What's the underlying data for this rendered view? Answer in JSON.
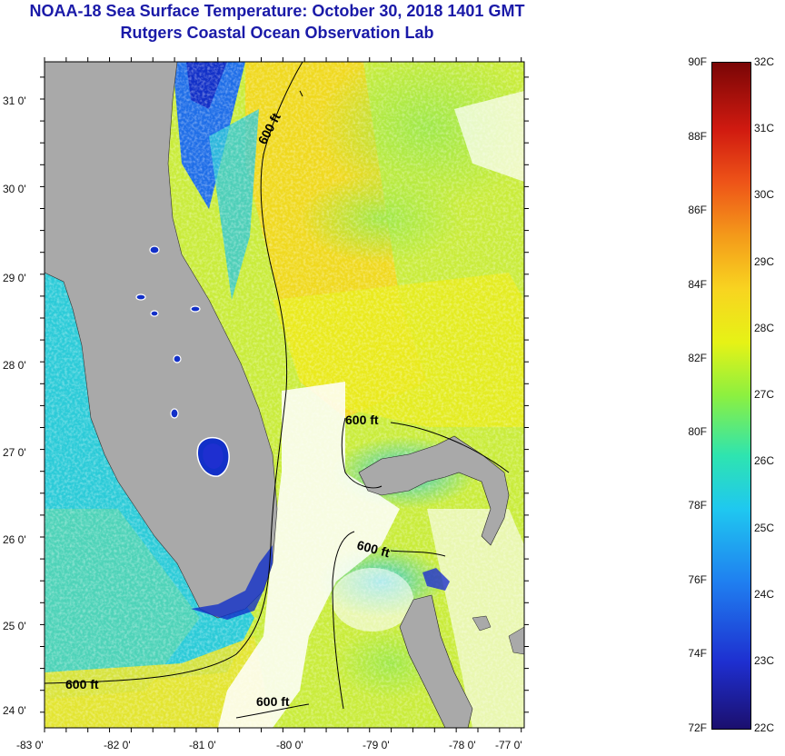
{
  "title": {
    "line1": "NOAA-18 Sea Surface Temperature:  October 30, 2018 1401 GMT",
    "line2": "Rutgers Coastal Ocean Observation Lab"
  },
  "map": {
    "lon_labels": [
      "-83 0'",
      "-82 0'",
      "-81 0'",
      "-80 0'",
      "-79 0'",
      "-78 0'",
      "-77 0'"
    ],
    "lat_labels": [
      "31 0'",
      "30 0'",
      "29 0'",
      "28 0'",
      "27 0'",
      "26 0'",
      "25 0'",
      "24 0'"
    ],
    "contour_labels": [
      "600 ft",
      "600 ft",
      "600 ft",
      "600 ft",
      "600 ft"
    ],
    "colors": {
      "land": "#a9a9a9",
      "cloud": "#ffffff",
      "warm": "#f2dc1a",
      "mid": "#9de84a",
      "cool": "#29c8e0",
      "cold": "#1230c8"
    }
  },
  "colorbar": {
    "f_labels": [
      "90F",
      "88F",
      "86F",
      "84F",
      "82F",
      "80F",
      "78F",
      "76F",
      "74F",
      "72F"
    ],
    "c_labels": [
      "32C",
      "31C",
      "30C",
      "29C",
      "28C",
      "27C",
      "26C",
      "25C",
      "24C",
      "23C",
      "22C"
    ]
  }
}
